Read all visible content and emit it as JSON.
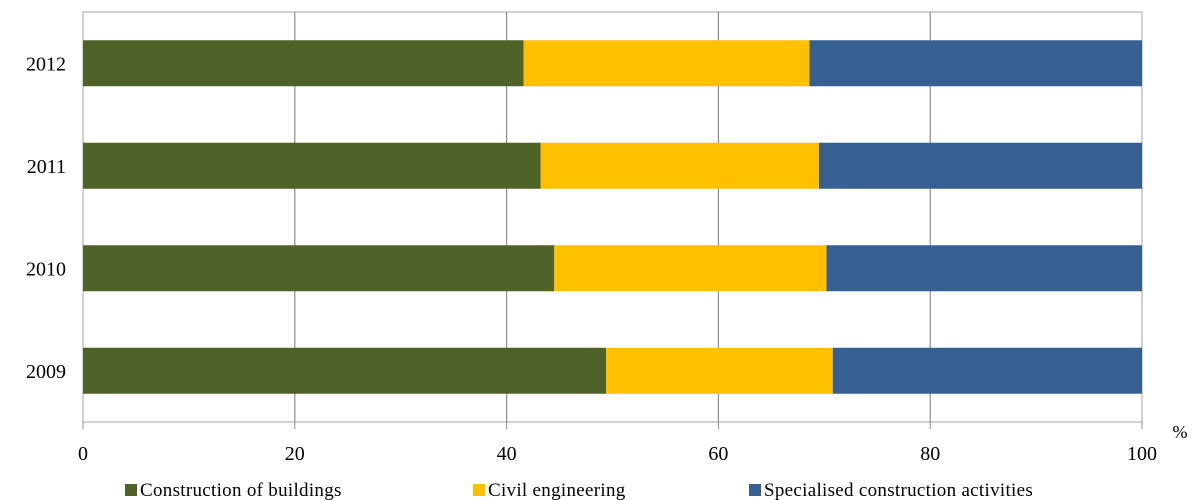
{
  "chart_data": {
    "type": "bar",
    "orientation": "horizontal",
    "stacked": true,
    "categories": [
      "2012",
      "2011",
      "2010",
      "2009"
    ],
    "series": [
      {
        "name": "Construction of buildings",
        "color": "#4f6228",
        "values": [
          41.6,
          43.2,
          44.5,
          49.4
        ]
      },
      {
        "name": "Civil engineering",
        "color": "#ffc000",
        "values": [
          27.0,
          26.3,
          25.7,
          21.4
        ]
      },
      {
        "name": "Specialised construction activities",
        "color": "#376092",
        "values": [
          31.4,
          30.5,
          29.8,
          29.2
        ]
      }
    ],
    "x_ticks": [
      "0",
      "20",
      "40",
      "60",
      "80",
      "100"
    ],
    "xlim": [
      0,
      100
    ],
    "x_unit": "%",
    "grid": "vertical",
    "legend_position": "bottom"
  }
}
